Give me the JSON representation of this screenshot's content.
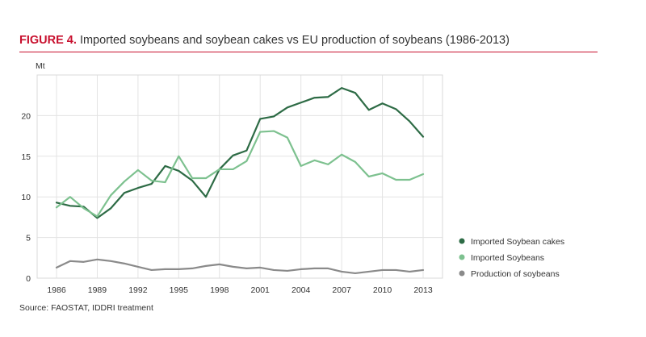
{
  "figure_label": "FIGURE 4.",
  "source": "Source: FAOSTAT, IDDRI treatment",
  "chart_data": {
    "type": "line",
    "title": "Imported soybeans and soybean cakes vs EU production of soybeans (1986-2013)",
    "ylabel": "Mt",
    "xlabel": "",
    "ylim": [
      0,
      25
    ],
    "xlim": [
      1986,
      2013
    ],
    "yticks": [
      0,
      5,
      10,
      15,
      20
    ],
    "xticks": [
      1986,
      1989,
      1992,
      1995,
      1998,
      2001,
      2004,
      2007,
      2010,
      2013
    ],
    "grid": true,
    "legend_position": "right",
    "x": [
      1986,
      1987,
      1988,
      1989,
      1990,
      1991,
      1992,
      1993,
      1994,
      1995,
      1996,
      1997,
      1998,
      1999,
      2000,
      2001,
      2002,
      2003,
      2004,
      2005,
      2006,
      2007,
      2008,
      2009,
      2010,
      2011,
      2012,
      2013
    ],
    "series": [
      {
        "name": "Imported Soybean cakes",
        "color": "#2d6b45",
        "values": [
          9.3,
          8.9,
          8.8,
          7.4,
          8.6,
          10.5,
          11.1,
          11.6,
          13.8,
          13.2,
          12.0,
          10.0,
          13.4,
          15.1,
          15.7,
          19.6,
          19.9,
          21.0,
          21.6,
          22.2,
          22.3,
          23.4,
          22.8,
          20.7,
          21.5,
          20.8,
          19.3,
          17.4
        ]
      },
      {
        "name": "Imported Soybeans",
        "color": "#7dc18f",
        "values": [
          8.7,
          10.0,
          8.6,
          7.6,
          10.2,
          11.9,
          13.3,
          12.0,
          11.8,
          15.0,
          12.3,
          12.3,
          13.4,
          13.4,
          14.4,
          18.0,
          18.1,
          17.3,
          13.8,
          14.5,
          14.0,
          15.2,
          14.3,
          12.5,
          12.9,
          12.1,
          12.1,
          12.8
        ]
      },
      {
        "name": "Production of soybeans",
        "color": "#8a8a8a",
        "values": [
          1.3,
          2.1,
          2.0,
          2.3,
          2.1,
          1.8,
          1.4,
          1.0,
          1.1,
          1.1,
          1.2,
          1.5,
          1.7,
          1.4,
          1.2,
          1.3,
          1.0,
          0.9,
          1.1,
          1.2,
          1.2,
          0.8,
          0.6,
          0.8,
          1.0,
          1.0,
          0.8,
          1.0
        ]
      }
    ]
  }
}
